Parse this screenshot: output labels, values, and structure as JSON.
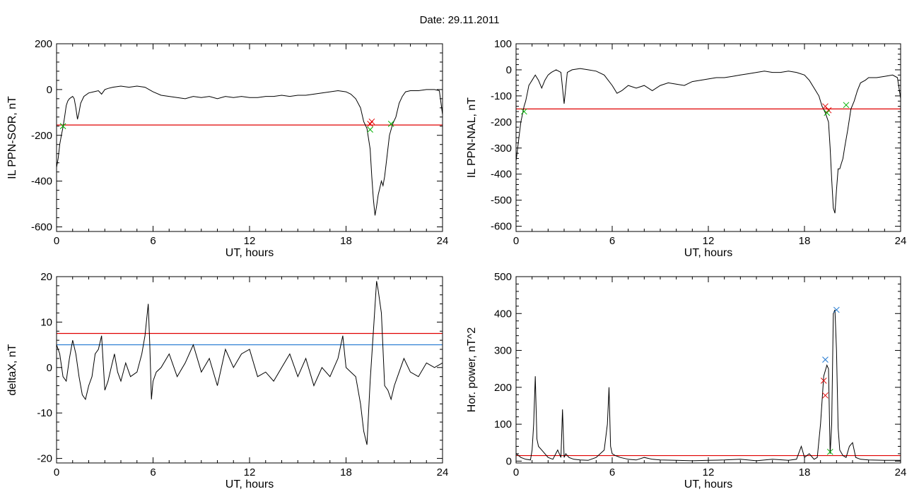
{
  "title": "Date:  29.11.2011",
  "chart_data": [
    {
      "type": "line",
      "id": "p1",
      "xlabel": "UT, hours",
      "ylabel": "IL PPN-SOR, nT",
      "xlim": [
        0,
        24
      ],
      "ylim": [
        -620,
        200
      ],
      "xticks": [
        0,
        6,
        12,
        18,
        24
      ],
      "yticks": [
        -600,
        -400,
        -200,
        0,
        200
      ],
      "hlines": [
        {
          "y": -155,
          "color": "#e00000"
        }
      ],
      "series": [
        {
          "color": "#000000",
          "x": [
            0,
            0.1,
            0.2,
            0.3,
            0.4,
            0.5,
            0.6,
            0.7,
            0.8,
            0.9,
            1.0,
            1.1,
            1.2,
            1.3,
            1.4,
            1.5,
            1.7,
            2.0,
            2.3,
            2.6,
            2.8,
            3.0,
            3.2,
            3.5,
            4.0,
            4.5,
            5.0,
            5.5,
            6.0,
            6.5,
            7.0,
            7.5,
            8.0,
            8.5,
            9.0,
            9.5,
            10.0,
            10.5,
            11.0,
            11.5,
            12.0,
            12.5,
            13.0,
            13.5,
            14.0,
            14.5,
            15.0,
            15.5,
            16.0,
            16.5,
            17.0,
            17.5,
            18.0,
            18.3,
            18.6,
            18.9,
            19.1,
            19.3,
            19.5,
            19.6,
            19.7,
            19.8,
            19.9,
            20.0,
            20.1,
            20.2,
            20.3,
            20.4,
            20.5,
            20.7,
            20.9,
            21.1,
            21.3,
            21.5,
            21.7,
            22.0,
            22.5,
            23.0,
            23.5,
            23.8,
            24.0
          ],
          "y": [
            -340,
            -300,
            -240,
            -200,
            -165,
            -120,
            -70,
            -50,
            -40,
            -35,
            -30,
            -40,
            -80,
            -130,
            -100,
            -60,
            -30,
            -15,
            -10,
            -5,
            -20,
            0,
            5,
            10,
            15,
            10,
            15,
            10,
            -10,
            -25,
            -30,
            -35,
            -40,
            -30,
            -35,
            -30,
            -40,
            -30,
            -35,
            -30,
            -35,
            -35,
            -30,
            -30,
            -25,
            -30,
            -25,
            -25,
            -20,
            -15,
            -10,
            -5,
            -10,
            -20,
            -40,
            -80,
            -140,
            -170,
            -260,
            -380,
            -480,
            -550,
            -510,
            -460,
            -430,
            -400,
            -420,
            -380,
            -320,
            -200,
            -150,
            -120,
            -60,
            -30,
            -10,
            -5,
            -5,
            0,
            0,
            -5,
            -110
          ]
        }
      ],
      "markers": [
        {
          "x": 0.4,
          "y": -160,
          "color": "#00b000"
        },
        {
          "x": 19.5,
          "y": -150,
          "color": "#e00000"
        },
        {
          "x": 19.6,
          "y": -140,
          "color": "#e00000"
        },
        {
          "x": 19.5,
          "y": -175,
          "color": "#00b000"
        },
        {
          "x": 20.8,
          "y": -150,
          "color": "#00b000"
        }
      ]
    },
    {
      "type": "line",
      "id": "p2",
      "xlabel": "UT, hours",
      "ylabel": "IL PPN-NAL, nT",
      "xlim": [
        0,
        24
      ],
      "ylim": [
        -620,
        100
      ],
      "xticks": [
        0,
        6,
        12,
        18,
        24
      ],
      "yticks": [
        -600,
        -500,
        -400,
        -300,
        -200,
        -100,
        0,
        100
      ],
      "hlines": [
        {
          "y": -150,
          "color": "#e00000"
        }
      ],
      "series": [
        {
          "color": "#000000",
          "x": [
            0,
            0.1,
            0.2,
            0.3,
            0.4,
            0.5,
            0.6,
            0.7,
            0.8,
            0.9,
            1.0,
            1.2,
            1.4,
            1.6,
            1.8,
            2.0,
            2.2,
            2.5,
            2.8,
            3.0,
            3.2,
            3.5,
            4.0,
            4.5,
            5.0,
            5.5,
            6.0,
            6.3,
            6.6,
            7.0,
            7.5,
            8.0,
            8.5,
            9.0,
            9.5,
            10.0,
            10.5,
            11.0,
            11.5,
            12.0,
            12.5,
            13.0,
            13.5,
            14.0,
            14.5,
            15.0,
            15.5,
            16.0,
            16.5,
            17.0,
            17.5,
            18.0,
            18.3,
            18.6,
            18.9,
            19.1,
            19.3,
            19.5,
            19.6,
            19.7,
            19.8,
            19.9,
            20.0,
            20.1,
            20.2,
            20.3,
            20.4,
            20.5,
            20.7,
            20.9,
            21.1,
            21.3,
            21.5,
            21.8,
            22.0,
            22.5,
            23.0,
            23.5,
            23.8,
            24.0
          ],
          "y": [
            -350,
            -300,
            -250,
            -200,
            -170,
            -140,
            -120,
            -90,
            -60,
            -50,
            -40,
            -20,
            -40,
            -70,
            -40,
            -20,
            -10,
            0,
            -10,
            -130,
            -10,
            0,
            5,
            0,
            -5,
            -20,
            -60,
            -90,
            -80,
            -60,
            -70,
            -60,
            -80,
            -60,
            -50,
            -55,
            -60,
            -45,
            -40,
            -35,
            -30,
            -30,
            -25,
            -20,
            -15,
            -10,
            -5,
            -10,
            -10,
            -5,
            -10,
            -20,
            -40,
            -70,
            -100,
            -140,
            -165,
            -200,
            -300,
            -420,
            -530,
            -550,
            -460,
            -380,
            -380,
            -360,
            -340,
            -300,
            -230,
            -150,
            -120,
            -80,
            -50,
            -40,
            -30,
            -30,
            -25,
            -20,
            -30,
            -110
          ]
        }
      ],
      "markers": [
        {
          "x": 0.5,
          "y": -160,
          "color": "#00b000"
        },
        {
          "x": 19.3,
          "y": -140,
          "color": "#e00000"
        },
        {
          "x": 19.5,
          "y": -155,
          "color": "#e00000"
        },
        {
          "x": 19.4,
          "y": -165,
          "color": "#00b000"
        },
        {
          "x": 20.6,
          "y": -135,
          "color": "#00b000"
        }
      ]
    },
    {
      "type": "line",
      "id": "p3",
      "xlabel": "UT, hours",
      "ylabel": "deltaX, nT",
      "xlim": [
        0,
        24
      ],
      "ylim": [
        -21,
        20
      ],
      "xticks": [
        0,
        6,
        12,
        18,
        24
      ],
      "yticks": [
        -20,
        -10,
        0,
        10,
        20
      ],
      "hlines": [
        {
          "y": 7.5,
          "color": "#e00000"
        },
        {
          "y": 5,
          "color": "#1f77d0"
        }
      ],
      "series": [
        {
          "color": "#000000",
          "x": [
            0,
            0.2,
            0.4,
            0.6,
            0.8,
            1.0,
            1.2,
            1.4,
            1.6,
            1.8,
            2.0,
            2.2,
            2.4,
            2.6,
            2.8,
            3.0,
            3.2,
            3.4,
            3.6,
            3.8,
            4.0,
            4.3,
            4.6,
            5.0,
            5.3,
            5.5,
            5.7,
            5.8,
            5.9,
            6.0,
            6.2,
            6.5,
            7.0,
            7.5,
            8.0,
            8.5,
            9.0,
            9.5,
            10.0,
            10.5,
            11.0,
            11.5,
            12.0,
            12.5,
            13.0,
            13.5,
            14.0,
            14.5,
            15.0,
            15.5,
            16.0,
            16.5,
            17.0,
            17.5,
            17.8,
            18.0,
            18.3,
            18.6,
            18.9,
            19.1,
            19.3,
            19.5,
            19.7,
            19.9,
            20.0,
            20.2,
            20.4,
            20.6,
            20.8,
            21.0,
            21.3,
            21.6,
            22.0,
            22.5,
            23.0,
            23.5,
            24.0
          ],
          "y": [
            5,
            3,
            -2,
            -3,
            2,
            6,
            3,
            -2,
            -6,
            -7,
            -4,
            -2,
            3,
            4,
            7,
            -5,
            -3,
            0,
            3,
            -1,
            -3,
            1,
            -2,
            -1,
            3,
            7,
            14,
            5,
            -7,
            -3,
            -1,
            0,
            3,
            -2,
            1,
            5,
            -1,
            2,
            -4,
            4,
            0,
            3,
            4,
            -2,
            -1,
            -3,
            0,
            3,
            -2,
            2,
            -4,
            0,
            -2,
            2,
            7,
            0,
            -1,
            -2,
            -8,
            -14,
            -17,
            -3,
            8,
            19,
            17,
            12,
            -4,
            -5,
            -7,
            -4,
            -1,
            2,
            -1,
            -2,
            1,
            0,
            1
          ]
        }
      ]
    },
    {
      "type": "line",
      "id": "p4",
      "xlabel": "UT, hours",
      "ylabel": "Hor. power, nT^2",
      "xlim": [
        0,
        24
      ],
      "ylim": [
        -5,
        500
      ],
      "xticks": [
        0,
        6,
        12,
        18,
        24
      ],
      "yticks": [
        0,
        100,
        200,
        300,
        400,
        500
      ],
      "hlines": [
        {
          "y": 15,
          "color": "#e00000"
        }
      ],
      "series": [
        {
          "color": "#000000",
          "x": [
            0,
            0.3,
            0.6,
            0.9,
            1.0,
            1.1,
            1.2,
            1.3,
            1.4,
            1.6,
            1.8,
            2.0,
            2.3,
            2.6,
            2.8,
            2.9,
            3.0,
            3.1,
            3.3,
            3.6,
            4.0,
            4.5,
            5.0,
            5.5,
            5.7,
            5.8,
            5.9,
            6.0,
            6.2,
            6.5,
            7.0,
            7.5,
            8.0,
            8.5,
            9.0,
            10.0,
            11.0,
            12.0,
            13.0,
            14.0,
            15.0,
            16.0,
            17.0,
            17.5,
            17.8,
            18.0,
            18.3,
            18.6,
            18.8,
            19.0,
            19.2,
            19.4,
            19.5,
            19.6,
            19.7,
            19.8,
            19.9,
            20.0,
            20.1,
            20.2,
            20.4,
            20.6,
            20.8,
            21.0,
            21.2,
            21.5,
            22.0,
            23.0,
            24.0
          ],
          "y": [
            20,
            10,
            5,
            3,
            30,
            100,
            230,
            60,
            40,
            30,
            20,
            10,
            5,
            30,
            10,
            140,
            10,
            20,
            10,
            5,
            3,
            2,
            10,
            30,
            100,
            200,
            40,
            20,
            15,
            10,
            5,
            3,
            10,
            5,
            3,
            2,
            1,
            2,
            3,
            5,
            1,
            5,
            2,
            5,
            40,
            10,
            20,
            5,
            10,
            100,
            230,
            260,
            250,
            20,
            100,
            400,
            410,
            300,
            90,
            30,
            15,
            10,
            40,
            50,
            10,
            5,
            3,
            2,
            2
          ]
        }
      ],
      "markers": [
        {
          "x": 19.2,
          "y": 218,
          "color": "#e00000"
        },
        {
          "x": 19.3,
          "y": 178,
          "color": "#e00000"
        },
        {
          "x": 19.3,
          "y": 275,
          "color": "#1f77d0"
        },
        {
          "x": 20.0,
          "y": 410,
          "color": "#1f77d0"
        },
        {
          "x": 19.6,
          "y": 25,
          "color": "#00b000"
        }
      ]
    }
  ]
}
